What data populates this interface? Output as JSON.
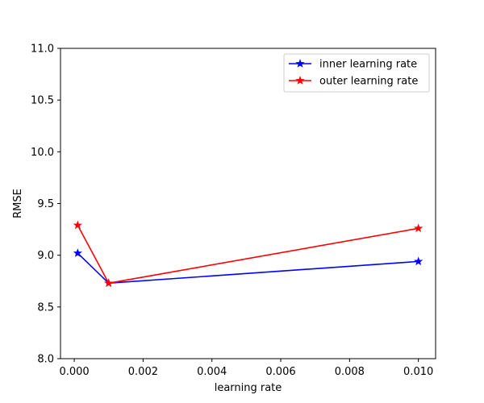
{
  "chart_data": {
    "type": "line",
    "title": "",
    "xlabel": "learning rate",
    "ylabel": "RMSE",
    "xlim": [
      -0.0004,
      0.0105
    ],
    "ylim": [
      8.0,
      11.0
    ],
    "xticks": [
      0.0,
      0.002,
      0.004,
      0.006,
      0.008,
      0.01
    ],
    "xtick_labels": [
      "0.000",
      "0.002",
      "0.004",
      "0.006",
      "0.008",
      "0.010"
    ],
    "yticks": [
      8.0,
      8.5,
      9.0,
      9.5,
      10.0,
      10.5,
      11.0
    ],
    "ytick_labels": [
      "8.0",
      "8.5",
      "9.0",
      "9.5",
      "10.0",
      "10.5",
      "11.0"
    ],
    "grid": false,
    "legend_position": "top-right",
    "series": [
      {
        "name": "inner learning rate",
        "color": "#0000ff",
        "marker": "star",
        "x": [
          0.0001,
          0.001,
          0.01
        ],
        "y": [
          9.02,
          8.73,
          8.94
        ]
      },
      {
        "name": "outer learning rate",
        "color": "#ff0000",
        "marker": "star",
        "x": [
          0.0001,
          0.001,
          0.01
        ],
        "y": [
          9.29,
          8.73,
          9.26
        ]
      }
    ]
  }
}
